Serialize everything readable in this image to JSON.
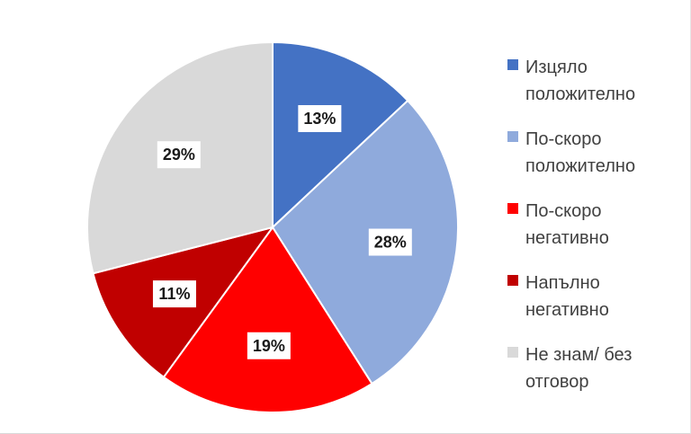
{
  "chart_data": {
    "type": "pie",
    "title": "",
    "unit": "%",
    "start_angle_deg": 0,
    "direction": "clockwise",
    "legend_position": "right",
    "slices": [
      {
        "label": "Изцяло положително",
        "label_lines": [
          "Изцяло",
          "положително"
        ],
        "value": 13,
        "display": "13%",
        "color": "#4472C4"
      },
      {
        "label": "По-скоро положително",
        "label_lines": [
          "По-скоро",
          "положително"
        ],
        "value": 28,
        "display": "28%",
        "color": "#8FAADC"
      },
      {
        "label": "По-скоро негативно",
        "label_lines": [
          "По-скоро",
          "негативно"
        ],
        "value": 19,
        "display": "19%",
        "color": "#FF0000"
      },
      {
        "label": "Напълно негативно",
        "label_lines": [
          "Напълно",
          "негативно"
        ],
        "value": 11,
        "display": "11%",
        "color": "#C00000"
      },
      {
        "label": "Не знам/ без отговор",
        "label_lines": [
          "Не знам/ без",
          "отговор"
        ],
        "value": 29,
        "display": "29%",
        "color": "#D9D9D9"
      }
    ]
  }
}
